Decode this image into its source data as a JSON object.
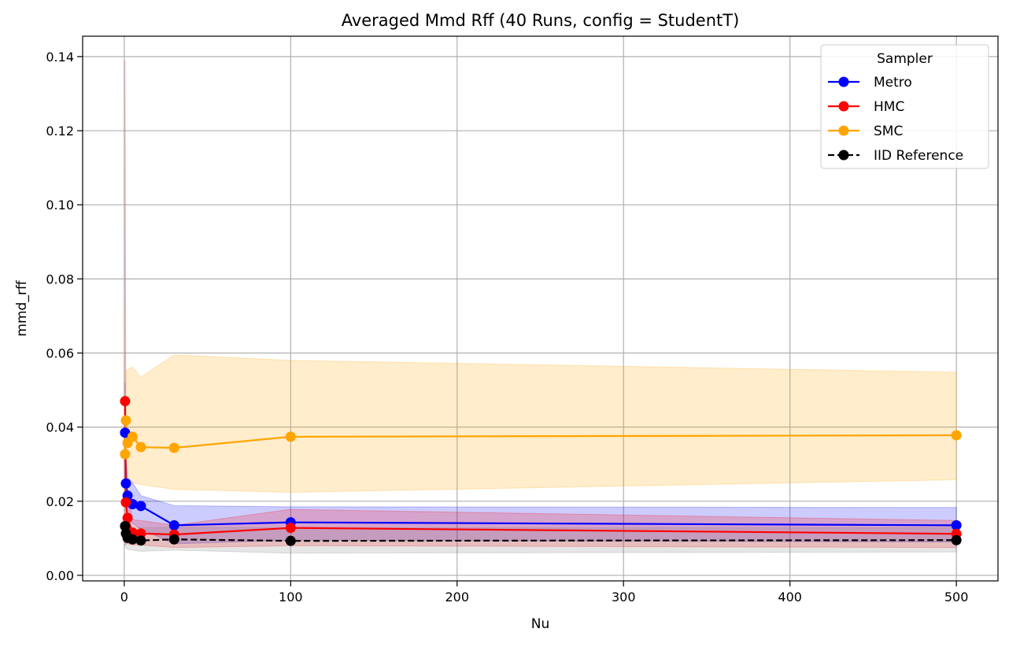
{
  "chart_data": {
    "type": "line",
    "title": "Averaged Mmd Rff (40 Runs, config = StudentT)",
    "xlabel": "Nu",
    "ylabel": "mmd_rff",
    "xlim": [
      -25,
      525
    ],
    "ylim": [
      -0.0015,
      0.1455
    ],
    "xticks": [
      0,
      100,
      200,
      300,
      400,
      500
    ],
    "yticks": [
      0.0,
      0.02,
      0.04,
      0.06,
      0.08,
      0.1,
      0.12,
      0.14
    ],
    "xtick_labels": [
      "0",
      "100",
      "200",
      "300",
      "400",
      "500"
    ],
    "ytick_labels": [
      "0.00",
      "0.02",
      "0.04",
      "0.06",
      "0.08",
      "0.10",
      "0.12",
      "0.14"
    ],
    "grid": true,
    "legend": {
      "title": "Sampler",
      "placement": "top-right"
    },
    "x": [
      0.5,
      1,
      2,
      5,
      10,
      30,
      100,
      500
    ],
    "series": [
      {
        "name": "Metro",
        "color": "#0000ff",
        "band_color": "#0000ff",
        "linestyle": "solid",
        "values": [
          0.0385,
          0.0248,
          0.0215,
          0.0192,
          0.0187,
          0.0135,
          0.0143,
          0.0135
        ],
        "lower": [
          0.025,
          0.0175,
          0.016,
          0.014,
          0.0125,
          0.0085,
          0.0095,
          0.009
        ],
        "upper": [
          0.052,
          0.032,
          0.0265,
          0.025,
          0.0215,
          0.0188,
          0.0185,
          0.0183
        ]
      },
      {
        "name": "HMC",
        "color": "#ff0000",
        "band_color": "#ff0000",
        "linestyle": "solid",
        "values": [
          0.047,
          0.0197,
          0.0155,
          0.0115,
          0.0113,
          0.011,
          0.0128,
          0.0112
        ],
        "lower": [
          0.008,
          0.0085,
          0.0085,
          0.0082,
          0.0082,
          0.0075,
          0.008,
          0.0075
        ],
        "upper": [
          0.139,
          0.031,
          0.023,
          0.015,
          0.0148,
          0.0135,
          0.0178,
          0.0148
        ]
      },
      {
        "name": "SMC",
        "color": "#ffa500",
        "band_color": "#ffa500",
        "linestyle": "solid",
        "values": [
          0.0327,
          0.0418,
          0.0357,
          0.0374,
          0.0346,
          0.0344,
          0.0374,
          0.0378
        ],
        "lower": [
          0.03,
          0.028,
          0.026,
          0.025,
          0.0245,
          0.0232,
          0.0224,
          0.0258
        ],
        "upper": [
          0.045,
          0.055,
          0.0555,
          0.0562,
          0.0535,
          0.0595,
          0.058,
          0.0548
        ]
      },
      {
        "name": "IID Reference",
        "color": "#000000",
        "band_color": "#808080",
        "linestyle": "dashed",
        "values": [
          0.0133,
          0.0113,
          0.0101,
          0.0097,
          0.0094,
          0.0097,
          0.0093,
          0.0095
        ],
        "lower": [
          0.008,
          0.0075,
          0.007,
          0.0068,
          0.0065,
          0.0068,
          0.006,
          0.0063
        ],
        "upper": [
          0.018,
          0.015,
          0.0135,
          0.013,
          0.0128,
          0.013,
          0.0128,
          0.0128
        ]
      }
    ]
  }
}
